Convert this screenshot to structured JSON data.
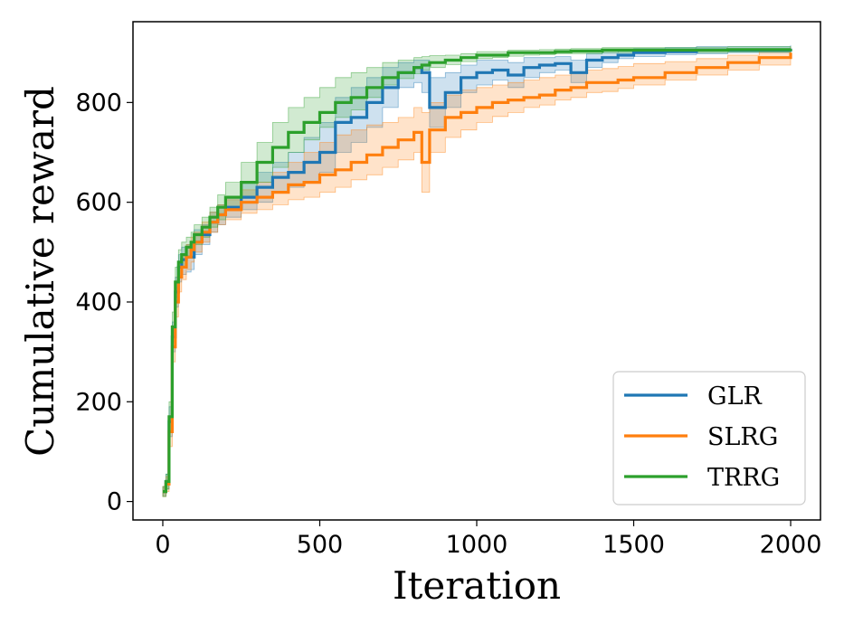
{
  "chart_data": {
    "type": "line",
    "xlabel": "Iteration",
    "ylabel": "Cumulative reward",
    "xlim": [
      -95,
      2095
    ],
    "ylim": [
      -37,
      962
    ],
    "x_ticks": [
      0,
      500,
      1000,
      1500,
      2000
    ],
    "y_ticks": [
      0,
      200,
      400,
      600,
      800
    ],
    "grid": false,
    "legend_position": "lower-right",
    "x": [
      0,
      10,
      20,
      30,
      40,
      50,
      60,
      75,
      90,
      100,
      125,
      150,
      175,
      200,
      250,
      300,
      350,
      400,
      450,
      500,
      550,
      600,
      650,
      700,
      750,
      800,
      825,
      850,
      900,
      950,
      1000,
      1050,
      1100,
      1150,
      1200,
      1250,
      1300,
      1350,
      1400,
      1450,
      1500,
      1600,
      1700,
      1800,
      1900,
      2000
    ],
    "series": [
      {
        "name": "GLR",
        "color": "#1f77b4",
        "values": [
          20,
          40,
          160,
          330,
          420,
          470,
          485,
          490,
          490,
          520,
          535,
          560,
          575,
          590,
          610,
          630,
          650,
          660,
          680,
          700,
          760,
          770,
          800,
          830,
          860,
          870,
          860,
          790,
          820,
          850,
          860,
          865,
          855,
          870,
          875,
          878,
          860,
          885,
          890,
          895,
          900,
          902,
          905,
          905,
          905,
          908
        ],
        "band_lower": [
          10,
          25,
          130,
          300,
          390,
          440,
          455,
          460,
          465,
          495,
          515,
          540,
          555,
          570,
          585,
          600,
          620,
          630,
          640,
          660,
          700,
          720,
          750,
          790,
          830,
          840,
          820,
          750,
          790,
          820,
          835,
          845,
          830,
          850,
          860,
          865,
          840,
          870,
          880,
          888,
          892,
          896,
          898,
          900,
          900,
          900
        ],
        "band_upper": [
          30,
          55,
          190,
          360,
          450,
          495,
          510,
          515,
          515,
          545,
          555,
          580,
          595,
          610,
          640,
          660,
          680,
          700,
          730,
          760,
          810,
          830,
          850,
          870,
          880,
          885,
          885,
          850,
          860,
          875,
          885,
          885,
          880,
          890,
          890,
          892,
          885,
          898,
          900,
          905,
          908,
          910,
          912,
          912,
          912,
          915
        ]
      },
      {
        "name": "SLRG",
        "color": "#ff7f0e",
        "values": [
          20,
          35,
          140,
          310,
          400,
          450,
          470,
          490,
          505,
          520,
          540,
          560,
          575,
          585,
          600,
          610,
          620,
          635,
          640,
          655,
          665,
          680,
          695,
          710,
          725,
          740,
          680,
          745,
          770,
          780,
          790,
          800,
          805,
          810,
          815,
          825,
          830,
          840,
          840,
          845,
          850,
          860,
          870,
          880,
          890,
          900
        ],
        "band_lower": [
          10,
          20,
          110,
          280,
          370,
          420,
          445,
          465,
          480,
          500,
          520,
          540,
          555,
          565,
          578,
          585,
          595,
          605,
          610,
          620,
          630,
          645,
          655,
          670,
          685,
          700,
          620,
          700,
          730,
          745,
          760,
          772,
          780,
          790,
          795,
          805,
          810,
          820,
          822,
          828,
          835,
          845,
          855,
          865,
          875,
          885
        ],
        "band_upper": [
          30,
          50,
          170,
          340,
          430,
          480,
          495,
          515,
          530,
          540,
          560,
          580,
          595,
          605,
          625,
          640,
          660,
          680,
          700,
          720,
          735,
          745,
          755,
          760,
          770,
          790,
          780,
          800,
          815,
          825,
          830,
          835,
          840,
          845,
          850,
          855,
          860,
          865,
          868,
          872,
          878,
          882,
          888,
          895,
          905,
          912
        ]
      },
      {
        "name": "TRRG",
        "color": "#2ca02c",
        "values": [
          20,
          40,
          170,
          350,
          440,
          480,
          495,
          510,
          520,
          535,
          550,
          570,
          590,
          610,
          640,
          680,
          710,
          740,
          760,
          780,
          800,
          810,
          830,
          850,
          860,
          870,
          875,
          880,
          885,
          890,
          895,
          895,
          900,
          900,
          900,
          902,
          903,
          903,
          905,
          905,
          905,
          905,
          905,
          906,
          906,
          907
        ],
        "band_lower": [
          10,
          25,
          140,
          320,
          410,
          450,
          470,
          490,
          500,
          515,
          530,
          550,
          565,
          585,
          610,
          640,
          670,
          700,
          725,
          750,
          770,
          785,
          810,
          835,
          848,
          858,
          865,
          870,
          876,
          882,
          888,
          890,
          893,
          895,
          896,
          898,
          898,
          898,
          900,
          900,
          900,
          900,
          900,
          901,
          901,
          901
        ],
        "band_upper": [
          30,
          55,
          200,
          380,
          470,
          505,
          520,
          530,
          540,
          555,
          570,
          590,
          615,
          640,
          680,
          720,
          760,
          790,
          810,
          830,
          850,
          860,
          870,
          880,
          885,
          890,
          892,
          894,
          895,
          898,
          902,
          902,
          905,
          905,
          906,
          907,
          908,
          908,
          910,
          910,
          910,
          910,
          911,
          912,
          912,
          913
        ]
      }
    ]
  }
}
